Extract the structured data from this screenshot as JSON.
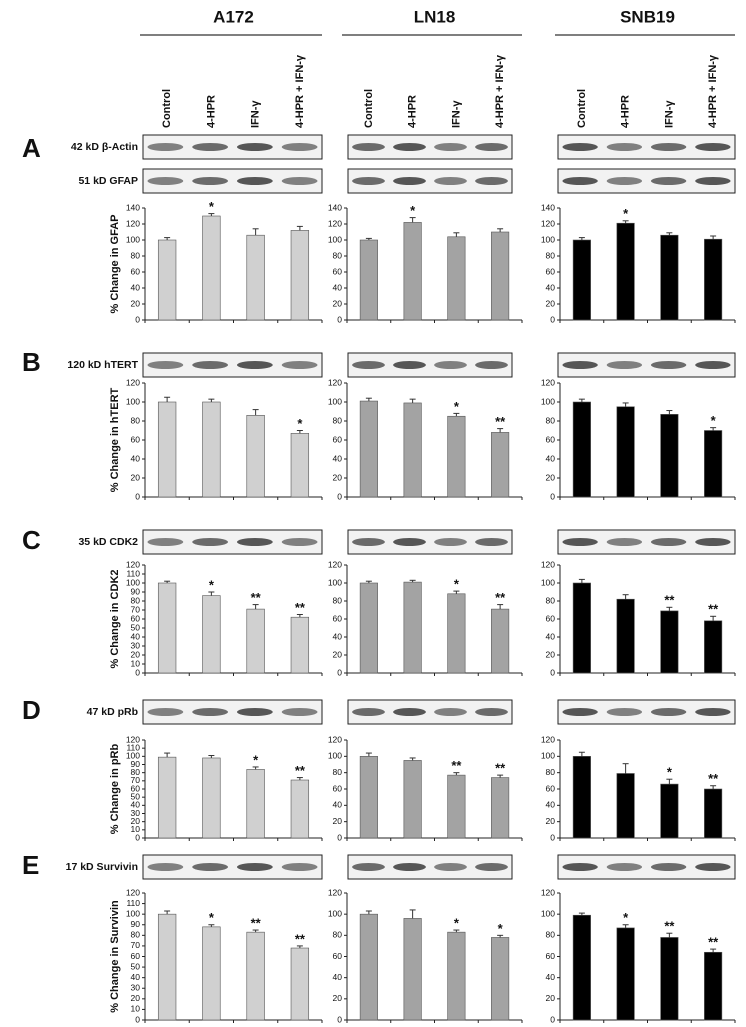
{
  "columns": [
    "A172",
    "LN18",
    "SNB19"
  ],
  "lanes": [
    "Control",
    "4-HPR",
    "IFN-γ",
    "4-HPR + IFN-γ"
  ],
  "panels": [
    {
      "letter": "A",
      "blots": [
        "42 kD β-Actin",
        "51 kD GFAP"
      ]
    },
    {
      "letter": "B",
      "blots": [
        "120 kD hTERT"
      ]
    },
    {
      "letter": "C",
      "blots": [
        "35 kD CDK2"
      ]
    },
    {
      "letter": "D",
      "blots": [
        "47 kD pRb"
      ]
    },
    {
      "letter": "E",
      "blots": [
        "17 kD Survivin"
      ]
    }
  ],
  "chart_data": [
    {
      "type": "bar",
      "ylabel": "% Change in GFAP",
      "values": [
        100,
        130,
        106,
        112
      ],
      "errors": [
        3,
        3,
        8,
        5
      ],
      "stars": [
        null,
        "*",
        null,
        null
      ],
      "color": "#d0d0d0",
      "ylim": [
        0,
        140
      ],
      "yticks": [
        0,
        20,
        40,
        60,
        80,
        100,
        120,
        140
      ]
    },
    {
      "type": "bar",
      "values": [
        100,
        122,
        104,
        110
      ],
      "errors": [
        2,
        6,
        5,
        4
      ],
      "stars": [
        null,
        "*",
        null,
        null
      ],
      "color": "#a3a3a3",
      "ylim": [
        0,
        140
      ],
      "yticks": [
        0,
        20,
        40,
        60,
        80,
        100,
        120,
        140
      ]
    },
    {
      "type": "bar",
      "values": [
        100,
        121,
        106,
        101
      ],
      "errors": [
        3,
        3,
        3,
        4
      ],
      "stars": [
        null,
        "*",
        null,
        null
      ],
      "color": "#000000",
      "ylim": [
        0,
        140
      ],
      "yticks": [
        0,
        20,
        40,
        60,
        80,
        100,
        120,
        140
      ]
    },
    {
      "type": "bar",
      "ylabel": "% Change in hTERT",
      "values": [
        100,
        100,
        86,
        67
      ],
      "errors": [
        5,
        3,
        6,
        3
      ],
      "stars": [
        null,
        null,
        null,
        "*"
      ],
      "color": "#d0d0d0",
      "ylim": [
        0,
        120
      ],
      "yticks": [
        0,
        20,
        40,
        60,
        80,
        100,
        120
      ]
    },
    {
      "type": "bar",
      "values": [
        101,
        99,
        85,
        68
      ],
      "errors": [
        3,
        4,
        3,
        4
      ],
      "stars": [
        null,
        null,
        "*",
        "**"
      ],
      "color": "#a3a3a3",
      "ylim": [
        0,
        120
      ],
      "yticks": [
        0,
        20,
        40,
        60,
        80,
        100,
        120
      ]
    },
    {
      "type": "bar",
      "values": [
        100,
        95,
        87,
        70
      ],
      "errors": [
        3,
        4,
        4,
        3
      ],
      "stars": [
        null,
        null,
        null,
        "*"
      ],
      "color": "#000000",
      "ylim": [
        0,
        120
      ],
      "yticks": [
        0,
        20,
        40,
        60,
        80,
        100,
        120
      ]
    },
    {
      "type": "bar",
      "ylabel": "% Change in CDK2",
      "values": [
        100,
        86,
        71,
        62
      ],
      "errors": [
        2,
        4,
        5,
        3
      ],
      "stars": [
        null,
        "*",
        "**",
        "**"
      ],
      "color": "#d0d0d0",
      "ylim": [
        0,
        120
      ],
      "yticks": [
        0,
        10,
        20,
        30,
        40,
        50,
        60,
        70,
        80,
        90,
        100,
        110,
        120
      ]
    },
    {
      "type": "bar",
      "values": [
        100,
        101,
        88,
        71
      ],
      "errors": [
        2,
        2,
        3,
        5
      ],
      "stars": [
        null,
        null,
        "*",
        "**"
      ],
      "color": "#a3a3a3",
      "ylim": [
        0,
        120
      ],
      "yticks": [
        0,
        20,
        40,
        60,
        80,
        100,
        120
      ]
    },
    {
      "type": "bar",
      "values": [
        100,
        82,
        69,
        58
      ],
      "errors": [
        4,
        5,
        4,
        5
      ],
      "stars": [
        null,
        null,
        "**",
        "**"
      ],
      "color": "#000000",
      "ylim": [
        0,
        120
      ],
      "yticks": [
        0,
        20,
        40,
        60,
        80,
        100,
        120
      ]
    },
    {
      "type": "bar",
      "ylabel": "% Change in pRb",
      "values": [
        99,
        98,
        84,
        71
      ],
      "errors": [
        5,
        3,
        3,
        3
      ],
      "stars": [
        null,
        null,
        "*",
        "**"
      ],
      "color": "#d0d0d0",
      "ylim": [
        0,
        120
      ],
      "yticks": [
        0,
        10,
        20,
        30,
        40,
        50,
        60,
        70,
        80,
        90,
        100,
        110,
        120
      ]
    },
    {
      "type": "bar",
      "values": [
        100,
        95,
        77,
        74
      ],
      "errors": [
        4,
        3,
        3,
        3
      ],
      "stars": [
        null,
        null,
        "**",
        "**"
      ],
      "color": "#a3a3a3",
      "ylim": [
        0,
        120
      ],
      "yticks": [
        0,
        20,
        40,
        60,
        80,
        100,
        120
      ]
    },
    {
      "type": "bar",
      "values": [
        100,
        79,
        66,
        60
      ],
      "errors": [
        5,
        12,
        6,
        4
      ],
      "stars": [
        null,
        null,
        "*",
        "**"
      ],
      "color": "#000000",
      "ylim": [
        0,
        120
      ],
      "yticks": [
        0,
        20,
        40,
        60,
        80,
        100,
        120
      ]
    },
    {
      "type": "bar",
      "ylabel": "% Change in Survivin",
      "values": [
        100,
        88,
        83,
        68
      ],
      "errors": [
        3,
        2,
        2,
        2
      ],
      "stars": [
        null,
        "*",
        "**",
        "**"
      ],
      "color": "#d0d0d0",
      "ylim": [
        0,
        120
      ],
      "yticks": [
        0,
        10,
        20,
        30,
        40,
        50,
        60,
        70,
        80,
        90,
        100,
        110,
        120
      ]
    },
    {
      "type": "bar",
      "values": [
        100,
        96,
        83,
        78
      ],
      "errors": [
        3,
        8,
        2,
        2
      ],
      "stars": [
        null,
        null,
        "*",
        "*"
      ],
      "color": "#a3a3a3",
      "ylim": [
        0,
        120
      ],
      "yticks": [
        0,
        20,
        40,
        60,
        80,
        100,
        120
      ]
    },
    {
      "type": "bar",
      "values": [
        99,
        87,
        78,
        64
      ],
      "errors": [
        2,
        3,
        4,
        3
      ],
      "stars": [
        null,
        "*",
        "**",
        "**"
      ],
      "color": "#000000",
      "ylim": [
        0,
        120
      ],
      "yticks": [
        0,
        20,
        40,
        60,
        80,
        100,
        120
      ]
    }
  ]
}
